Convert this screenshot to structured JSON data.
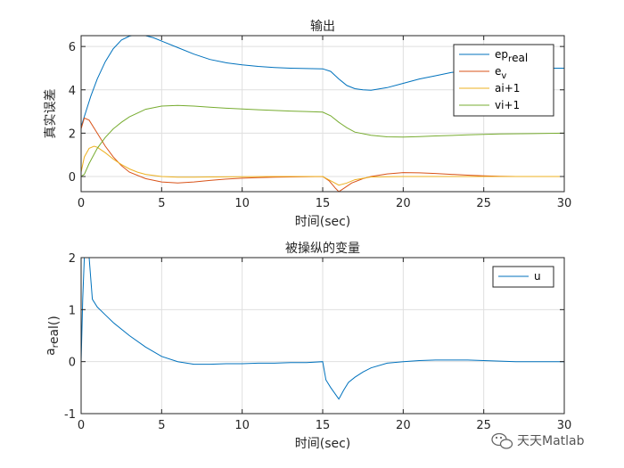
{
  "chart_data": [
    {
      "type": "line",
      "title": "输出",
      "xlabel": "时间(sec)",
      "ylabel": "真实误差",
      "xlim": [
        0,
        30
      ],
      "ylim": [
        -0.7,
        6.5
      ],
      "xticks": [
        0,
        5,
        10,
        15,
        20,
        25,
        30
      ],
      "yticks": [
        0,
        2,
        4,
        6
      ],
      "grid": true,
      "legend_position": "top-right",
      "series": [
        {
          "name": "ep_real",
          "color": "#0072BD",
          "x": [
            0,
            0.3,
            0.6,
            1,
            1.5,
            2,
            2.5,
            3,
            3.5,
            4,
            4.5,
            5,
            6,
            7,
            8,
            9,
            10,
            11,
            12,
            13,
            14,
            15,
            15.5,
            16,
            16.5,
            17,
            17.5,
            18,
            19,
            20,
            21,
            22,
            23,
            24,
            25,
            26,
            27,
            28,
            29,
            30
          ],
          "y": [
            2.3,
            3.0,
            3.7,
            4.5,
            5.3,
            5.9,
            6.3,
            6.48,
            6.55,
            6.5,
            6.4,
            6.25,
            5.95,
            5.65,
            5.4,
            5.25,
            5.15,
            5.08,
            5.03,
            5.0,
            4.98,
            4.97,
            4.85,
            4.5,
            4.2,
            4.05,
            4.0,
            3.98,
            4.1,
            4.3,
            4.5,
            4.65,
            4.8,
            4.9,
            4.95,
            4.98,
            4.99,
            5.0,
            5.0,
            5.0
          ]
        },
        {
          "name": "e_v",
          "color": "#D95319",
          "x": [
            0,
            0.2,
            0.5,
            1,
            1.5,
            2,
            2.5,
            3,
            4,
            5,
            6,
            7,
            8,
            9,
            10,
            11,
            12,
            13,
            14,
            15,
            15.4,
            15.8,
            16,
            16.3,
            16.8,
            17.5,
            18,
            19,
            20,
            21,
            22,
            23,
            24,
            25,
            26,
            27,
            28,
            29,
            30
          ],
          "y": [
            2.2,
            2.7,
            2.6,
            2.0,
            1.4,
            0.9,
            0.5,
            0.2,
            -0.1,
            -0.25,
            -0.3,
            -0.25,
            -0.18,
            -0.12,
            -0.08,
            -0.05,
            -0.03,
            -0.02,
            -0.01,
            0.0,
            -0.2,
            -0.55,
            -0.7,
            -0.55,
            -0.3,
            -0.1,
            0.0,
            0.12,
            0.18,
            0.17,
            0.14,
            0.1,
            0.06,
            0.03,
            0.01,
            0.0,
            0.0,
            0.0,
            0.0
          ]
        },
        {
          "name": "ai+1",
          "color": "#EDB120",
          "x": [
            0,
            0.2,
            0.5,
            0.8,
            1,
            1.5,
            2,
            2.5,
            3,
            3.5,
            4,
            5,
            6,
            7,
            8,
            10,
            12,
            14,
            15,
            15.5,
            16,
            16.5,
            17,
            18,
            20,
            22,
            24,
            26,
            28,
            30
          ],
          "y": [
            0.2,
            0.9,
            1.3,
            1.4,
            1.35,
            1.1,
            0.8,
            0.55,
            0.35,
            0.2,
            0.1,
            0.0,
            -0.03,
            -0.03,
            -0.02,
            -0.01,
            0.0,
            0.0,
            0.0,
            -0.2,
            -0.4,
            -0.3,
            -0.15,
            -0.02,
            0.0,
            0.0,
            0.0,
            0.0,
            0.0,
            0.0
          ]
        },
        {
          "name": "vi+1",
          "color": "#77AC30",
          "x": [
            0,
            0.2,
            0.5,
            1,
            1.5,
            2,
            2.5,
            3,
            4,
            5,
            6,
            7,
            8,
            9,
            10,
            11,
            12,
            13,
            14,
            15,
            15.5,
            16,
            16.5,
            17,
            18,
            19,
            20,
            21,
            22,
            24,
            26,
            28,
            30
          ],
          "y": [
            0.0,
            0.1,
            0.6,
            1.3,
            1.8,
            2.2,
            2.5,
            2.75,
            3.1,
            3.25,
            3.28,
            3.25,
            3.2,
            3.15,
            3.12,
            3.08,
            3.05,
            3.02,
            3.0,
            2.97,
            2.8,
            2.5,
            2.25,
            2.05,
            1.9,
            1.83,
            1.82,
            1.84,
            1.87,
            1.92,
            1.96,
            1.98,
            2.0
          ]
        }
      ]
    },
    {
      "type": "line",
      "title": "被操纵的变量",
      "xlabel": "时间(sec)",
      "ylabel": "a_real()",
      "xlim": [
        0,
        30
      ],
      "ylim": [
        -1,
        2
      ],
      "xticks": [
        0,
        5,
        10,
        15,
        20,
        25,
        30
      ],
      "yticks": [
        -1,
        0,
        1,
        2
      ],
      "grid": true,
      "legend_position": "top-right",
      "series": [
        {
          "name": "u",
          "color": "#0072BD",
          "x": [
            0,
            0.1,
            0.2,
            0.35,
            0.5,
            0.7,
            1,
            1.5,
            2,
            3,
            4,
            5,
            6,
            7,
            8,
            9,
            10,
            11,
            12,
            13,
            14,
            15,
            15.2,
            15.5,
            16,
            16.3,
            16.6,
            17,
            17.5,
            18,
            19,
            20,
            21,
            22,
            23,
            24,
            25,
            26,
            27,
            28,
            29,
            30
          ],
          "y": [
            0.0,
            1.2,
            2.0,
            2.0,
            2.0,
            1.2,
            1.05,
            0.9,
            0.75,
            0.5,
            0.28,
            0.1,
            0.0,
            -0.05,
            -0.05,
            -0.04,
            -0.04,
            -0.03,
            -0.03,
            -0.02,
            -0.02,
            0.0,
            -0.35,
            -0.5,
            -0.72,
            -0.55,
            -0.4,
            -0.3,
            -0.2,
            -0.12,
            -0.03,
            0.0,
            0.02,
            0.03,
            0.03,
            0.03,
            0.02,
            0.01,
            0.0,
            0.0,
            0.0,
            0.0
          ]
        }
      ]
    }
  ],
  "watermark": {
    "text": "天天Matlab",
    "icon": "wechat-icon"
  }
}
